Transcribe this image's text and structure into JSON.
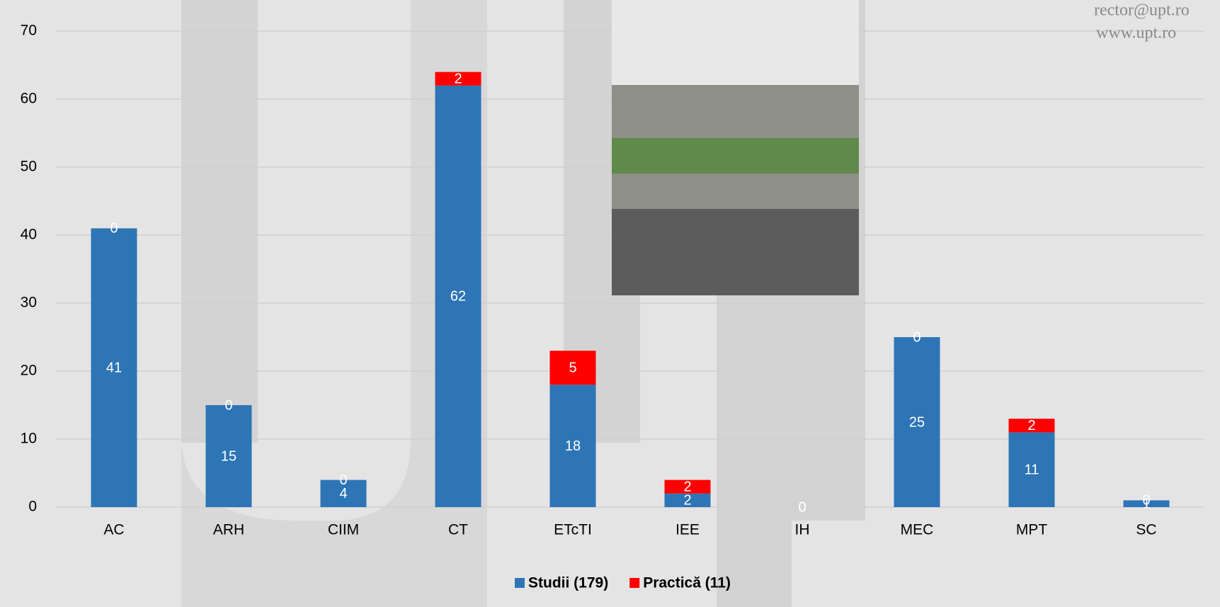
{
  "chart_data": {
    "type": "stacked_bar",
    "categories": [
      "AC",
      "ARH",
      "CIIM",
      "CT",
      "ETcTI",
      "IEE",
      "IH",
      "MEC",
      "MPT",
      "SC"
    ],
    "series": [
      {
        "name": "Studii (179)",
        "color": "#2e75b6",
        "values": [
          41,
          15,
          4,
          62,
          18,
          2,
          0,
          25,
          11,
          1
        ]
      },
      {
        "name": "Practică (11)",
        "color": "#ff0000",
        "values": [
          0,
          0,
          0,
          2,
          5,
          2,
          0,
          0,
          2,
          0
        ]
      }
    ],
    "ylim": [
      0,
      70
    ],
    "yticks": [
      0,
      10,
      20,
      30,
      40,
      50,
      60,
      70
    ],
    "grid": true,
    "legend": "bottom"
  },
  "watermark": [
    "rector@upt.ro",
    "www.upt.ro"
  ]
}
